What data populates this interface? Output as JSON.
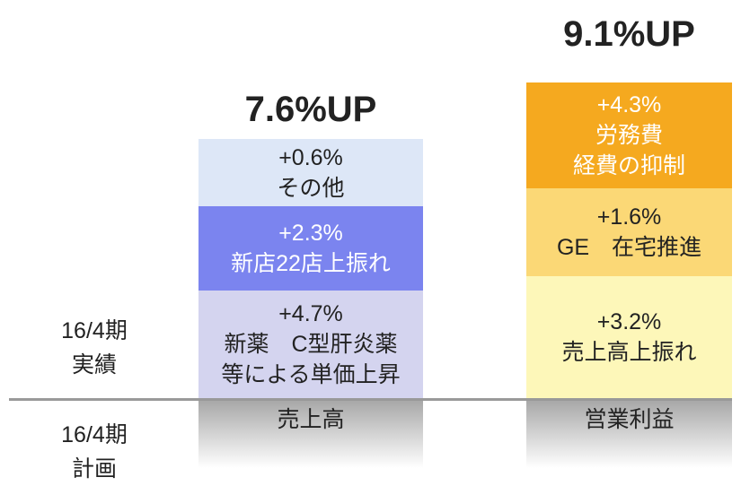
{
  "row_labels": {
    "actual": [
      "16/4期",
      "実績"
    ],
    "plan": [
      "16/4期",
      "計画"
    ]
  },
  "columns": [
    {
      "title": "7.6%UP",
      "label": "売上高",
      "segments": [
        {
          "lines": [
            "+0.6%",
            "その他"
          ]
        },
        {
          "lines": [
            "+2.3%",
            "新店22店上振れ"
          ]
        },
        {
          "lines": [
            "+4.7%",
            "新薬　C型肝炎薬",
            "等による単価上昇"
          ]
        }
      ]
    },
    {
      "title": "9.1%UP",
      "label": "営業利益",
      "segments": [
        {
          "lines": [
            "+4.3%",
            "労務費",
            "経費の抑制"
          ]
        },
        {
          "lines": [
            "+1.6%",
            "GE　在宅推進"
          ]
        },
        {
          "lines": [
            "+3.2%",
            "売上高上振れ"
          ]
        }
      ]
    }
  ]
}
